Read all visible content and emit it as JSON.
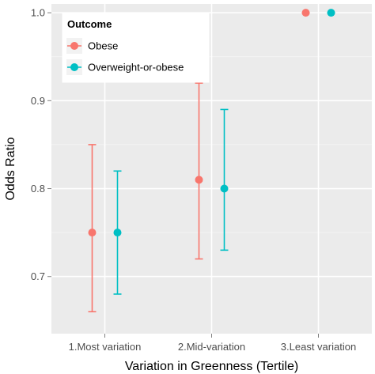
{
  "chart_data": {
    "type": "scatter",
    "xlabel": "Variation in Greenness (Tertile)",
    "ylabel": "Odds Ratio",
    "categories": [
      "1.Most variation",
      "2.Mid-variation",
      "3.Least variation"
    ],
    "ylim": [
      0.635,
      1.01
    ],
    "yticks": [
      0.7,
      0.8,
      0.9,
      1.0
    ],
    "ytick_labels": [
      "0.7",
      "0.8",
      "0.9",
      "1.0"
    ],
    "grid": true,
    "legend": {
      "title": "Outcome",
      "position": "top-left"
    },
    "series": [
      {
        "name": "Obese",
        "color": "#F8766D",
        "values": [
          0.75,
          0.81,
          1.0
        ],
        "lower": [
          0.66,
          0.72,
          1.0
        ],
        "upper": [
          0.85,
          0.92,
          1.0
        ]
      },
      {
        "name": "Overweight-or-obese",
        "color": "#00BFC4",
        "values": [
          0.75,
          0.8,
          1.0
        ],
        "lower": [
          0.68,
          0.73,
          1.0
        ],
        "upper": [
          0.82,
          0.89,
          1.0
        ]
      }
    ]
  }
}
